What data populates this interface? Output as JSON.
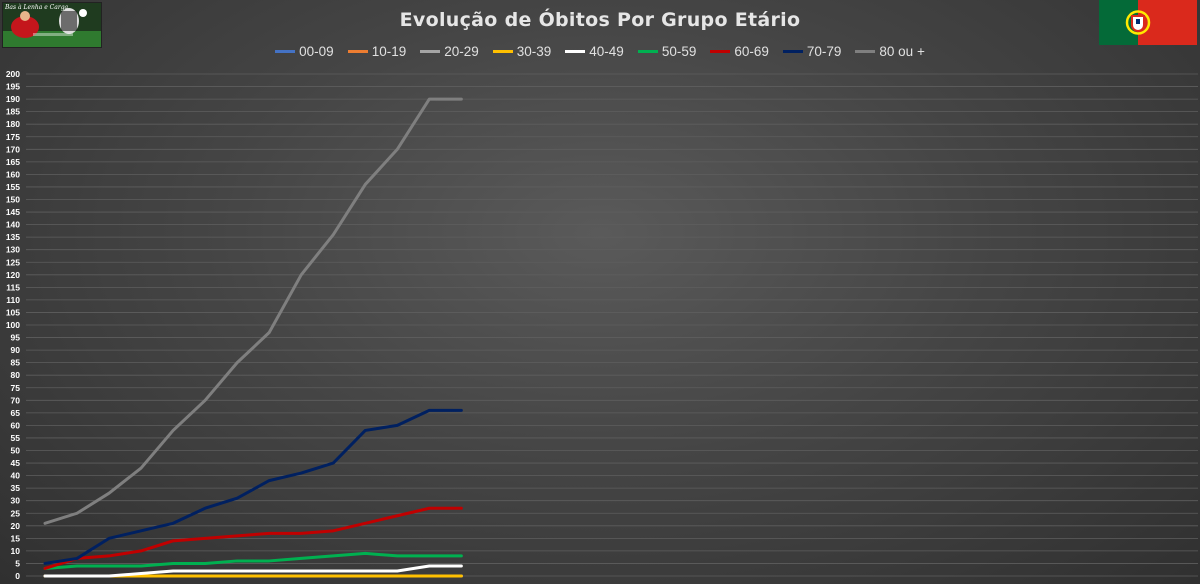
{
  "title": "Evolução de Óbitos Por Grupo Etário",
  "logo": {
    "text": "Bas à Lenha e Carga"
  },
  "flag": {
    "name": "portugal-flag",
    "green": "#046A38",
    "red": "#DA291C",
    "yellow": "#FFE900"
  },
  "chart_data": {
    "type": "line",
    "title": "Evolução de Óbitos Por Grupo Etário",
    "xlabel": "",
    "ylabel": "",
    "ylim": [
      0,
      200
    ],
    "yticks": [
      0,
      5,
      10,
      15,
      20,
      25,
      30,
      35,
      40,
      45,
      50,
      55,
      60,
      65,
      70,
      75,
      80,
      85,
      90,
      95,
      100,
      105,
      110,
      115,
      120,
      125,
      130,
      135,
      140,
      145,
      150,
      155,
      160,
      165,
      170,
      175,
      180,
      185,
      190,
      195,
      200
    ],
    "x_count_total": 36,
    "x": [
      1,
      2,
      3,
      4,
      5,
      6,
      7,
      8,
      9,
      10,
      11,
      12,
      13,
      14
    ],
    "grid": true,
    "legend_position": "top",
    "series": [
      {
        "name": "00-09",
        "color": "#4472C4",
        "values": [
          0,
          0,
          0,
          0,
          0,
          0,
          0,
          0,
          0,
          0,
          0,
          0,
          0,
          0
        ]
      },
      {
        "name": "10-19",
        "color": "#ED7D31",
        "values": [
          0,
          0,
          0,
          0,
          0,
          0,
          0,
          0,
          0,
          0,
          0,
          0,
          0,
          0
        ]
      },
      {
        "name": "20-29",
        "color": "#A5A5A5",
        "values": [
          0,
          0,
          0,
          0,
          0,
          0,
          0,
          0,
          0,
          0,
          0,
          0,
          0,
          0
        ]
      },
      {
        "name": "30-39",
        "color": "#FFC000",
        "values": [
          0,
          0,
          0,
          0,
          0,
          0,
          0,
          0,
          0,
          0,
          0,
          0,
          0,
          0
        ]
      },
      {
        "name": "40-49",
        "color": "#FFFFFF",
        "values": [
          0,
          0,
          0,
          1,
          2,
          2,
          2,
          2,
          2,
          2,
          2,
          2,
          4,
          4
        ]
      },
      {
        "name": "50-59",
        "color": "#00B050",
        "values": [
          3,
          4,
          4,
          4,
          5,
          5,
          6,
          6,
          7,
          8,
          9,
          8,
          8,
          8
        ]
      },
      {
        "name": "60-69",
        "color": "#C00000",
        "values": [
          3,
          7,
          8,
          10,
          14,
          15,
          16,
          17,
          17,
          18,
          21,
          24,
          27,
          27
        ]
      },
      {
        "name": "70-79",
        "color": "#002060",
        "values": [
          5,
          7,
          15,
          18,
          21,
          27,
          31,
          38,
          41,
          45,
          58,
          60,
          66,
          66
        ]
      },
      {
        "name": "80 ou +",
        "color": "#7F7F7F",
        "values": [
          21,
          25,
          33,
          43,
          58,
          70,
          85,
          97,
          120,
          136,
          156,
          170,
          190,
          190
        ]
      }
    ]
  }
}
